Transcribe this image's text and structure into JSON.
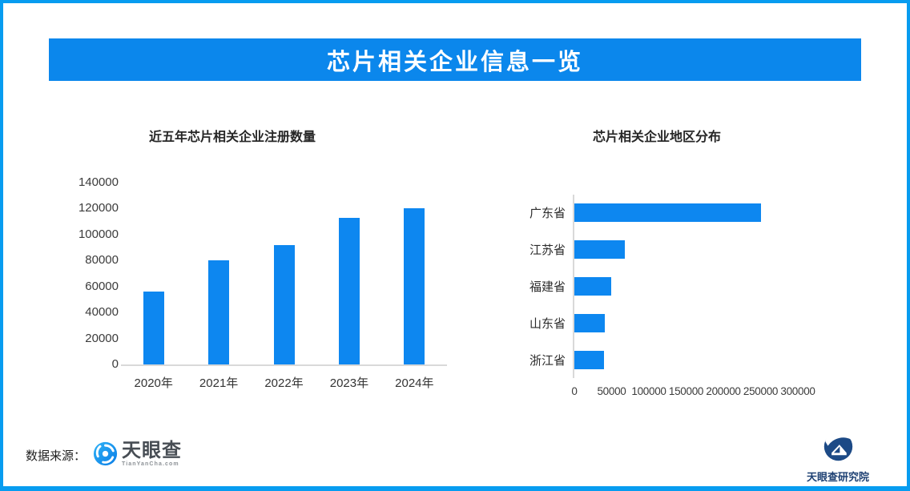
{
  "page": {
    "banner_title": "芯片相关企业信息一览",
    "colors": {
      "frame": "#079cf0",
      "banner_bg": "#0b87ec",
      "banner_text": "#ffffff",
      "bar": "#0d87f0",
      "axis_line": "#d9d9d9"
    }
  },
  "footer": {
    "source_label": "数据来源：",
    "tianyancha_logo": "天眼查",
    "tianyancha_sub": "TianYanCha.com",
    "research_logo": "天眼查研究院"
  },
  "chart_data": [
    {
      "id": "registrations",
      "type": "bar",
      "title": "近五年芯片相关企业注册数量",
      "categories": [
        "2020年",
        "2021年",
        "2022年",
        "2023年",
        "2024年"
      ],
      "values": [
        56000,
        80000,
        92000,
        113000,
        120000
      ],
      "xlabel": "",
      "ylabel": "",
      "ylim": [
        0,
        140000
      ],
      "ytick_step": 20000,
      "grid": false,
      "legend": "none"
    },
    {
      "id": "regions",
      "type": "bar-horizontal",
      "title": "芯片相关企业地区分布",
      "categories": [
        "广东省",
        "江苏省",
        "福建省",
        "山东省",
        "浙江省"
      ],
      "values": [
        250000,
        68000,
        49000,
        41000,
        40000
      ],
      "xlabel": "",
      "ylabel": "",
      "xlim": [
        0,
        300000
      ],
      "xtick_step": 50000,
      "grid": false,
      "legend": "none"
    }
  ]
}
